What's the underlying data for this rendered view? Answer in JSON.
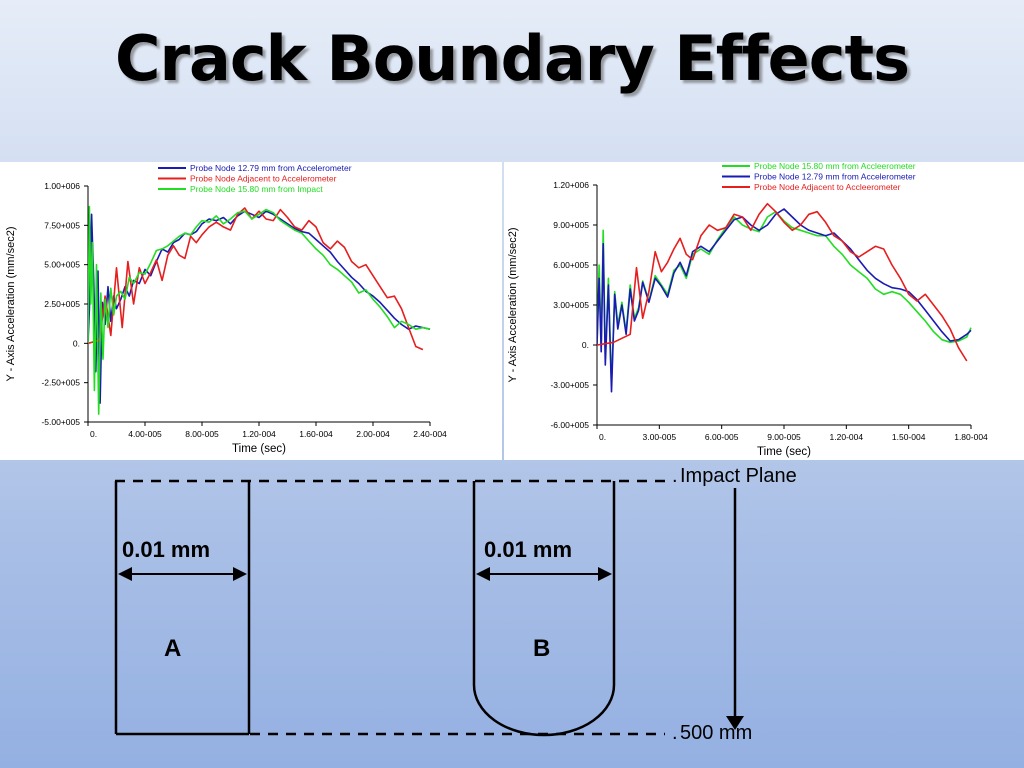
{
  "slide": {
    "title": "Crack Boundary Effects"
  },
  "colors": {
    "green": "#22dd22",
    "blue": "#1a1ab4",
    "red": "#e61e1e"
  },
  "chart_data": [
    {
      "type": "line",
      "xlabel": "Time (sec)",
      "ylabel": "Y - Axis Acceleration (mm/sec2)",
      "xlim": [
        0,
        0.00024
      ],
      "ylim": [
        -500000,
        1000000
      ],
      "xticks": [
        0,
        4e-05,
        8e-05,
        0.00012,
        0.00016,
        0.0002,
        0.00024
      ],
      "xtick_labels": [
        "0.",
        "4.00-005",
        "8.00-005",
        "1.20-004",
        "1.60-004",
        "2.00-004",
        "2.40-004"
      ],
      "yticks": [
        1000000,
        750000,
        500000,
        250000,
        0,
        -250000,
        -500000
      ],
      "ytick_labels": [
        "1.00+006",
        "7.50+005",
        "5.00+005",
        "2.50+005",
        "0.",
        "-2.50+005",
        "-5.00+005"
      ],
      "series": [
        {
          "name": "Probe Node 12.79 mm from Accelerometer",
          "color": "blue",
          "x": [
            0,
            1e-06,
            2.5e-06,
            4e-06,
            5.5e-06,
            7e-06,
            8.5e-06,
            1e-05,
            1.2e-05,
            1.4e-05,
            1.6e-05,
            1.8e-05,
            2e-05,
            2.3e-05,
            2.6e-05,
            2.9e-05,
            3.2e-05,
            3.6e-05,
            4e-05,
            4.4e-05,
            4.8e-05,
            5.2e-05,
            5.6e-05,
            6e-05,
            6.4e-05,
            6.8e-05,
            7.2e-05,
            7.6e-05,
            8e-05,
            8.5e-05,
            9e-05,
            9.5e-05,
            0.0001,
            0.000105,
            0.00011,
            0.000115,
            0.00012,
            0.000125,
            0.00013,
            0.000135,
            0.00014,
            0.000145,
            0.00015,
            0.000155,
            0.00016,
            0.000165,
            0.00017,
            0.000175,
            0.00018,
            0.000185,
            0.00019,
            0.000195,
            0.0002,
            0.000205,
            0.00021,
            0.000215,
            0.00022,
            0.000225,
            0.00023,
            0.000235,
            0.00024
          ],
          "y": [
            0,
            220000,
            820000,
            400000,
            -180000,
            460000,
            -380000,
            260000,
            120000,
            360000,
            140000,
            300000,
            220000,
            280000,
            360000,
            300000,
            400000,
            380000,
            470000,
            430000,
            520000,
            600000,
            580000,
            640000,
            660000,
            700000,
            690000,
            710000,
            760000,
            790000,
            780000,
            800000,
            760000,
            810000,
            840000,
            820000,
            800000,
            840000,
            820000,
            790000,
            760000,
            730000,
            710000,
            700000,
            660000,
            620000,
            580000,
            520000,
            470000,
            420000,
            380000,
            330000,
            300000,
            260000,
            210000,
            160000,
            120000,
            90000,
            110000,
            100000,
            90000
          ]
        },
        {
          "name": "Probe Node Adjacent to Accelerometer",
          "color": "red",
          "x": [
            0,
            4e-06,
            8e-06,
            1.2e-05,
            1.6e-05,
            2e-05,
            2.4e-05,
            2.8e-05,
            3.2e-05,
            3.6e-05,
            4e-05,
            4.4e-05,
            4.8e-05,
            5.2e-05,
            5.6e-05,
            6e-05,
            6.4e-05,
            6.8e-05,
            7.2e-05,
            7.6e-05,
            8e-05,
            8.5e-05,
            9e-05,
            9.5e-05,
            0.0001,
            0.000105,
            0.00011,
            0.000115,
            0.00012,
            0.000125,
            0.00013,
            0.000135,
            0.00014,
            0.000145,
            0.00015,
            0.000155,
            0.00016,
            0.000165,
            0.00017,
            0.000175,
            0.00018,
            0.000185,
            0.00019,
            0.000195,
            0.0002,
            0.000205,
            0.00021,
            0.000215,
            0.00022,
            0.000225,
            0.00023,
            0.000235
          ],
          "y": [
            0,
            10000,
            20000,
            300000,
            50000,
            480000,
            100000,
            520000,
            250000,
            480000,
            380000,
            450000,
            530000,
            400000,
            560000,
            620000,
            560000,
            540000,
            680000,
            640000,
            690000,
            740000,
            770000,
            740000,
            720000,
            820000,
            860000,
            790000,
            840000,
            790000,
            780000,
            850000,
            800000,
            740000,
            720000,
            780000,
            740000,
            640000,
            600000,
            650000,
            610000,
            520000,
            480000,
            500000,
            430000,
            360000,
            290000,
            300000,
            220000,
            100000,
            -20000,
            -40000
          ]
        },
        {
          "name": "Probe Node 15.80 mm from Impact",
          "color": "green",
          "x": [
            0,
            1e-06,
            2e-06,
            3e-06,
            4.5e-06,
            6e-06,
            7.5e-06,
            9e-06,
            1.05e-05,
            1.2e-05,
            1.4e-05,
            1.6e-05,
            1.8e-05,
            2e-05,
            2.3e-05,
            2.6e-05,
            2.9e-05,
            3.2e-05,
            3.6e-05,
            4e-05,
            4.4e-05,
            4.8e-05,
            5.2e-05,
            5.6e-05,
            6e-05,
            6.4e-05,
            6.8e-05,
            7.2e-05,
            7.6e-05,
            8e-05,
            8.5e-05,
            9e-05,
            9.5e-05,
            0.0001,
            0.000105,
            0.00011,
            0.000115,
            0.00012,
            0.000125,
            0.00013,
            0.000135,
            0.00014,
            0.000145,
            0.00015,
            0.000155,
            0.00016,
            0.000165,
            0.00017,
            0.000175,
            0.00018,
            0.000185,
            0.00019,
            0.000195,
            0.0002,
            0.000205,
            0.00021,
            0.000215,
            0.00022,
            0.000225,
            0.00023,
            0.000235,
            0.00024
          ],
          "y": [
            0,
            870000,
            250000,
            640000,
            -300000,
            500000,
            -450000,
            320000,
            -100000,
            280000,
            100000,
            350000,
            180000,
            300000,
            330000,
            280000,
            420000,
            380000,
            450000,
            440000,
            510000,
            590000,
            600000,
            620000,
            650000,
            680000,
            700000,
            690000,
            740000,
            780000,
            770000,
            810000,
            760000,
            790000,
            830000,
            840000,
            790000,
            820000,
            850000,
            830000,
            780000,
            750000,
            720000,
            700000,
            650000,
            600000,
            560000,
            500000,
            470000,
            430000,
            390000,
            320000,
            340000,
            280000,
            230000,
            170000,
            100000,
            140000,
            120000,
            90000,
            100000,
            90000
          ]
        }
      ]
    },
    {
      "type": "line",
      "xlabel": "Time (sec)",
      "ylabel": "Y - Axis Acceleration (mm/sec2)",
      "xlim": [
        0,
        0.00018
      ],
      "ylim": [
        -600000,
        1200000
      ],
      "xticks": [
        0,
        3e-05,
        6e-05,
        9e-05,
        0.00012,
        0.00015,
        0.00018
      ],
      "xtick_labels": [
        "0.",
        "3.00-005",
        "6.00-005",
        "9.00-005",
        "1.20-004",
        "1.50-004",
        "1.80-004"
      ],
      "yticks": [
        1200000,
        900000,
        600000,
        300000,
        0,
        -300000,
        -600000
      ],
      "ytick_labels": [
        "1.20+006",
        "9.00+005",
        "6.00+005",
        "3.00+005",
        "0.",
        "-3.00+005",
        "-6.00+005"
      ],
      "series": [
        {
          "name": "Probe Node 15.80 mm from Accleerometer",
          "color": "green",
          "x": [
            0,
            1e-06,
            2e-06,
            3e-06,
            4e-06,
            5.5e-06,
            7e-06,
            8.5e-06,
            1e-05,
            1.2e-05,
            1.4e-05,
            1.6e-05,
            1.8e-05,
            2e-05,
            2.2e-05,
            2.5e-05,
            2.8e-05,
            3.1e-05,
            3.4e-05,
            3.7e-05,
            4e-05,
            4.3e-05,
            4.6e-05,
            5e-05,
            5.4e-05,
            5.8e-05,
            6.2e-05,
            6.6e-05,
            7e-05,
            7.4e-05,
            7.8e-05,
            8.2e-05,
            8.6e-05,
            9e-05,
            9.4e-05,
            9.8e-05,
            0.000102,
            0.000106,
            0.00011,
            0.000114,
            0.000118,
            0.000122,
            0.000126,
            0.00013,
            0.000134,
            0.000138,
            0.000142,
            0.000146,
            0.00015,
            0.000154,
            0.000158,
            0.000162,
            0.000166,
            0.00017,
            0.000174,
            0.000178,
            0.00018
          ],
          "y": [
            0,
            600000,
            0,
            860000,
            -100000,
            500000,
            -300000,
            400000,
            150000,
            320000,
            100000,
            450000,
            200000,
            280000,
            480000,
            330000,
            520000,
            450000,
            380000,
            560000,
            600000,
            500000,
            680000,
            720000,
            680000,
            790000,
            880000,
            960000,
            900000,
            870000,
            850000,
            960000,
            1000000,
            930000,
            880000,
            860000,
            840000,
            820000,
            820000,
            740000,
            680000,
            600000,
            550000,
            500000,
            420000,
            380000,
            400000,
            380000,
            320000,
            250000,
            180000,
            100000,
            40000,
            20000,
            30000,
            60000,
            130000
          ]
        },
        {
          "name": "Probe Node 12.79 mm from Accelerometer",
          "color": "blue",
          "x": [
            0,
            1e-06,
            2e-06,
            3e-06,
            4e-06,
            5.5e-06,
            7e-06,
            8.5e-06,
            1e-05,
            1.2e-05,
            1.4e-05,
            1.6e-05,
            1.8e-05,
            2e-05,
            2.2e-05,
            2.5e-05,
            2.8e-05,
            3.1e-05,
            3.4e-05,
            3.7e-05,
            4e-05,
            4.3e-05,
            4.6e-05,
            5e-05,
            5.4e-05,
            5.8e-05,
            6.2e-05,
            6.6e-05,
            7e-05,
            7.4e-05,
            7.8e-05,
            8.2e-05,
            8.6e-05,
            9e-05,
            9.4e-05,
            9.8e-05,
            0.000102,
            0.000106,
            0.00011,
            0.000114,
            0.000118,
            0.000122,
            0.000126,
            0.00013,
            0.000134,
            0.000138,
            0.000142,
            0.000146,
            0.00015,
            0.000154,
            0.000158,
            0.000162,
            0.000166,
            0.00017,
            0.000174,
            0.000178,
            0.00018
          ],
          "y": [
            0,
            500000,
            -50000,
            760000,
            -150000,
            450000,
            -350000,
            380000,
            120000,
            300000,
            80000,
            420000,
            180000,
            260000,
            470000,
            320000,
            500000,
            440000,
            360000,
            540000,
            620000,
            520000,
            700000,
            740000,
            700000,
            780000,
            860000,
            940000,
            960000,
            900000,
            860000,
            900000,
            980000,
            1020000,
            960000,
            900000,
            860000,
            840000,
            820000,
            840000,
            780000,
            720000,
            640000,
            560000,
            500000,
            460000,
            430000,
            420000,
            400000,
            340000,
            260000,
            180000,
            100000,
            30000,
            40000,
            80000,
            110000
          ]
        },
        {
          "name": "Probe Node Adjacent to Accleerometer",
          "color": "red",
          "x": [
            0,
            4e-06,
            8e-06,
            1.2e-05,
            1.6e-05,
            1.9e-05,
            2.2e-05,
            2.5e-05,
            2.8e-05,
            3.1e-05,
            3.4e-05,
            3.7e-05,
            4e-05,
            4.3e-05,
            4.6e-05,
            5e-05,
            5.4e-05,
            5.8e-05,
            6.2e-05,
            6.6e-05,
            7e-05,
            7.4e-05,
            7.8e-05,
            8.2e-05,
            8.6e-05,
            9e-05,
            9.4e-05,
            9.8e-05,
            0.000102,
            0.000106,
            0.00011,
            0.000114,
            0.000118,
            0.000122,
            0.000126,
            0.00013,
            0.000134,
            0.000138,
            0.000142,
            0.000146,
            0.00015,
            0.000154,
            0.000158,
            0.000162,
            0.000166,
            0.00017,
            0.000174,
            0.000178
          ],
          "y": [
            0,
            10000,
            20000,
            50000,
            80000,
            580000,
            200000,
            400000,
            700000,
            550000,
            620000,
            720000,
            800000,
            680000,
            640000,
            820000,
            900000,
            860000,
            880000,
            980000,
            960000,
            860000,
            980000,
            1060000,
            1000000,
            920000,
            860000,
            900000,
            980000,
            1000000,
            920000,
            820000,
            780000,
            700000,
            660000,
            700000,
            740000,
            720000,
            600000,
            500000,
            380000,
            330000,
            380000,
            300000,
            220000,
            120000,
            -20000,
            -120000
          ]
        }
      ]
    }
  ],
  "diagram": {
    "impact_plane_label": "Impact Plane",
    "depth_label": "500 mm",
    "width_label_a": "0.01 mm",
    "width_label_b": "0.01 mm",
    "shape_a_label": "A",
    "shape_b_label": "B"
  }
}
